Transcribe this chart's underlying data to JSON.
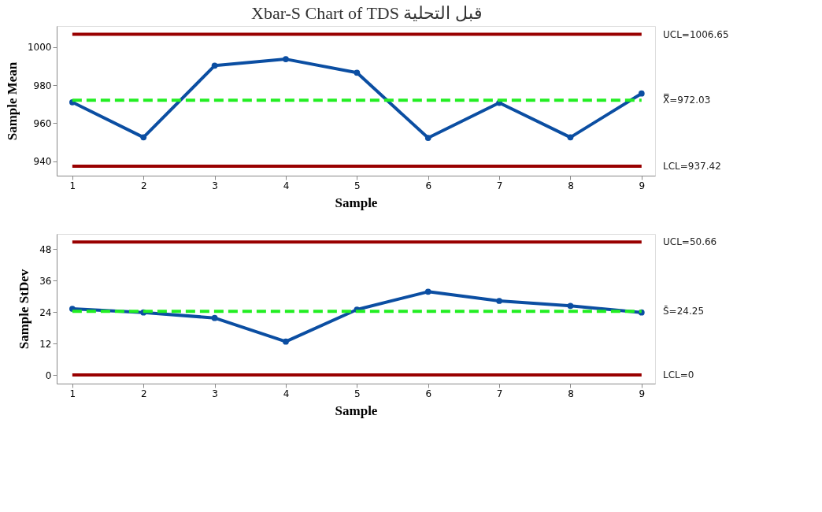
{
  "chart_data": [
    {
      "type": "line",
      "title": "Xbar-S Chart of TDS قبل التحلية",
      "xlabel": "Sample",
      "ylabel": "Sample Mean",
      "x": [
        1,
        2,
        3,
        4,
        5,
        6,
        7,
        8,
        9
      ],
      "xlim": [
        0.78,
        9.19
      ],
      "xticks": [
        1,
        2,
        3,
        4,
        5,
        6,
        7,
        8,
        9
      ],
      "ylim": [
        932.5,
        1011
      ],
      "yticks": [
        940,
        960,
        980,
        1000
      ],
      "grid": false,
      "legend": false,
      "marker": "circle",
      "line_style": "solid",
      "series": [
        {
          "color": "#0b4ea2",
          "values": [
            971.0,
            952.6,
            990.2,
            993.6,
            986.5,
            952.3,
            970.7,
            952.6,
            975.6
          ]
        }
      ],
      "ref_lines": [
        {
          "axis": "y",
          "value": 1006.65,
          "label": "UCL=1006.65",
          "color": "#990000",
          "line_style": "solid"
        },
        {
          "axis": "y",
          "value": 972.03,
          "label": "X̿=972.03",
          "color": "#22ee22",
          "line_style": "dashed"
        },
        {
          "axis": "y",
          "value": 937.42,
          "label": "LCL=937.42",
          "color": "#990000",
          "line_style": "solid"
        }
      ]
    },
    {
      "type": "line",
      "xlabel": "Sample",
      "ylabel": "Sample StDev",
      "x": [
        1,
        2,
        3,
        4,
        5,
        6,
        7,
        8,
        9
      ],
      "xlim": [
        0.78,
        9.19
      ],
      "xticks": [
        1,
        2,
        3,
        4,
        5,
        6,
        7,
        8,
        9
      ],
      "ylim": [
        -3.3,
        53.7
      ],
      "yticks": [
        0,
        12,
        24,
        36,
        48
      ],
      "grid": false,
      "legend": false,
      "marker": "circle",
      "line_style": "solid",
      "series": [
        {
          "color": "#0b4ea2",
          "values": [
            25.2,
            23.8,
            21.7,
            12.7,
            24.9,
            31.7,
            28.2,
            26.3,
            23.8
          ]
        }
      ],
      "ref_lines": [
        {
          "axis": "y",
          "value": 50.66,
          "label": "UCL=50.66",
          "color": "#990000",
          "line_style": "solid"
        },
        {
          "axis": "y",
          "value": 24.25,
          "label": "S̄=24.25",
          "color": "#22ee22",
          "line_style": "dashed"
        },
        {
          "axis": "y",
          "value": 0,
          "label": "LCL=0",
          "color": "#990000",
          "line_style": "solid"
        }
      ]
    }
  ]
}
